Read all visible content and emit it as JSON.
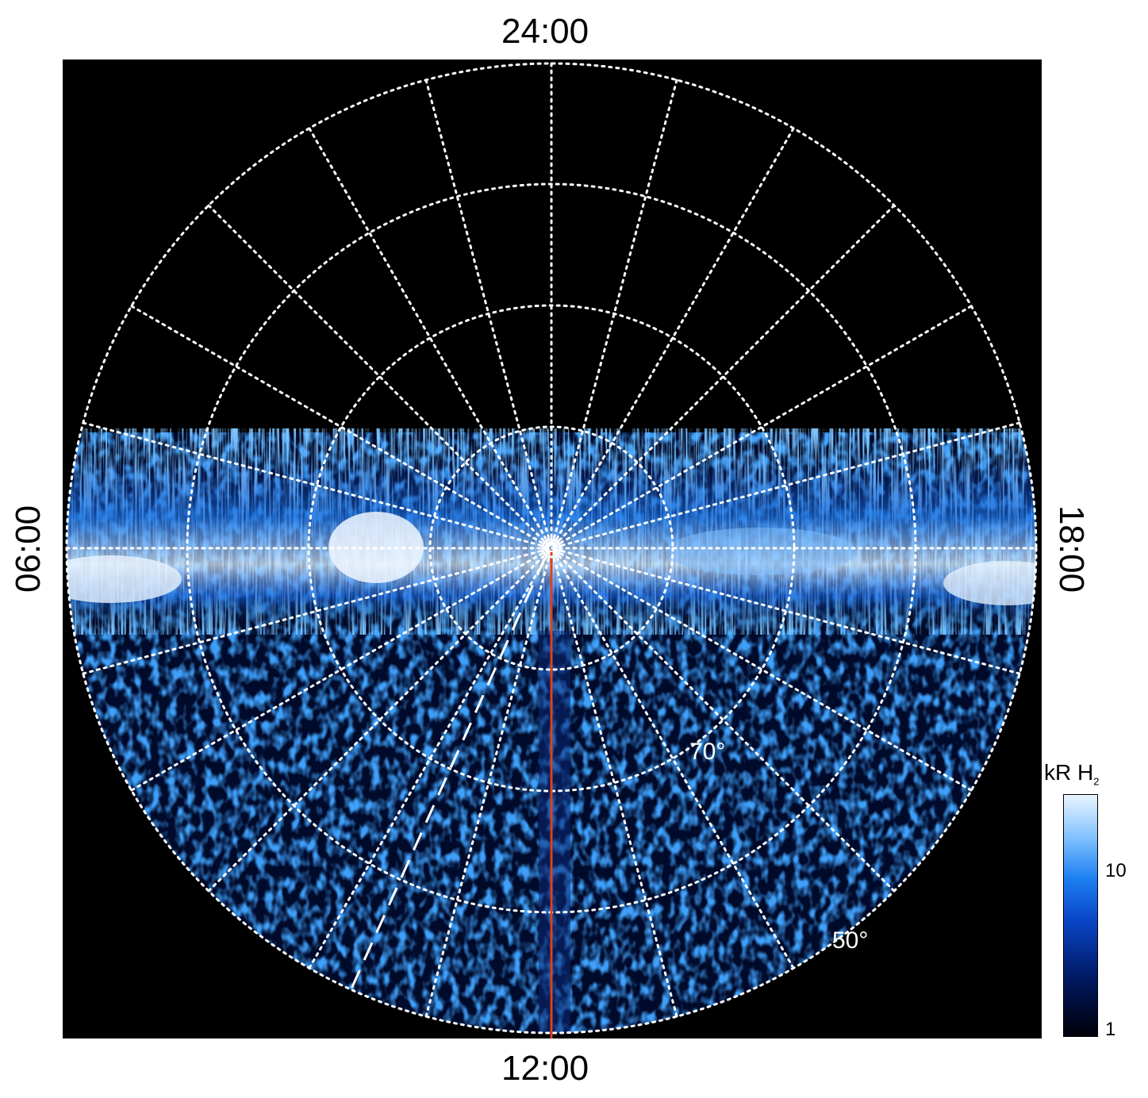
{
  "local_time_labels": {
    "top": "24:00",
    "bottom": "12:00",
    "left": "06:00",
    "right": "18:00"
  },
  "latitude_labels": {
    "inner": "70°",
    "outer": "50°"
  },
  "colorbar": {
    "title": "kR H",
    "title_subscript": "2",
    "ticks": [
      "10",
      "1"
    ]
  },
  "colors": {
    "background": "#000000",
    "grid": "#ffffff",
    "meridian_line": "#e0401a",
    "emission_low": "#001a66",
    "emission_mid": "#1b7ef0",
    "emission_high": "#eaf5ff"
  }
}
